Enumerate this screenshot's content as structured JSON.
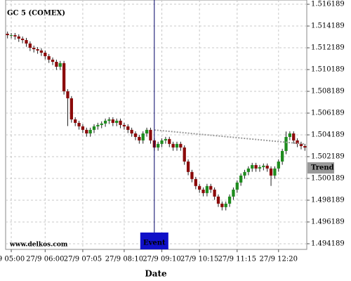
{
  "chart_data": {
    "type": "candlestick",
    "title": "GC 5 (COMEX)",
    "watermark": "www.delkos.com",
    "x_label": "Date",
    "categories": [
      null,
      "9 05:00",
      null,
      null,
      null,
      null,
      null,
      null,
      null,
      null,
      "27/9 06:00",
      null,
      null,
      null,
      null,
      null,
      null,
      null,
      null,
      null,
      "27/9 07:05",
      null,
      null,
      null,
      null,
      null,
      null,
      null,
      null,
      null,
      null,
      "27/9 08:10",
      null,
      null,
      null,
      null,
      null,
      null,
      null,
      null,
      null,
      "27/9 09:10",
      null,
      null,
      null,
      null,
      null,
      null,
      null,
      null,
      null,
      "27/9 10:15",
      null,
      null,
      null,
      null,
      null,
      null,
      null,
      null,
      null,
      "27/9 11:15",
      null,
      null,
      null,
      null,
      null,
      null,
      null,
      null,
      null,
      null,
      "27/9 12:20",
      null,
      null,
      null,
      null,
      null,
      null,
      null
    ],
    "open": [
      1.51348,
      1.51335,
      1.51335,
      1.51323,
      1.51303,
      1.5129,
      1.51258,
      1.51219,
      1.51206,
      1.51194,
      1.51174,
      1.51142,
      1.5111,
      1.5109,
      1.51045,
      1.51078,
      1.50819,
      1.50755,
      1.50561,
      1.50529,
      1.50497,
      1.50465,
      1.50432,
      1.50465,
      1.50497,
      1.5051,
      1.50523,
      1.50549,
      1.50561,
      1.50529,
      1.50549,
      1.5051,
      1.50497,
      1.50465,
      1.50432,
      1.504,
      1.50368,
      1.50432,
      1.50465,
      1.50368,
      1.50303,
      1.50336,
      1.50368,
      1.50381,
      1.50336,
      1.50303,
      1.50336,
      1.50303,
      1.50174,
      1.50078,
      1.50013,
      1.49949,
      1.49916,
      1.49884,
      1.49949,
      1.49916,
      1.49852,
      1.49787,
      1.49755,
      1.49787,
      1.49852,
      1.49916,
      1.49981,
      1.50045,
      1.50078,
      1.5011,
      1.50142,
      1.5011,
      1.50123,
      1.50136,
      1.5011,
      1.50045,
      1.5011,
      1.50174,
      1.50271,
      1.504,
      1.50432,
      1.50368,
      1.50336,
      1.50316
    ],
    "high": [
      1.51368,
      1.51355,
      1.51355,
      1.51343,
      1.51323,
      1.5131,
      1.51278,
      1.51239,
      1.51226,
      1.51214,
      1.51194,
      1.51162,
      1.5113,
      1.5111,
      1.51098,
      1.51098,
      1.50839,
      1.50775,
      1.50581,
      1.50549,
      1.50517,
      1.50485,
      1.50485,
      1.50517,
      1.5053,
      1.50543,
      1.50569,
      1.50581,
      1.50581,
      1.50569,
      1.50569,
      1.5053,
      1.50517,
      1.50485,
      1.50452,
      1.5042,
      1.50452,
      1.50485,
      1.50485,
      1.50388,
      1.50356,
      1.50388,
      1.50401,
      1.50401,
      1.50356,
      1.50356,
      1.50356,
      1.50323,
      1.50194,
      1.50098,
      1.50033,
      1.49969,
      1.49936,
      1.49969,
      1.49969,
      1.49936,
      1.49872,
      1.49807,
      1.49807,
      1.49872,
      1.49936,
      1.50001,
      1.50065,
      1.50098,
      1.5013,
      1.50162,
      1.50162,
      1.50143,
      1.50156,
      1.50156,
      1.5013,
      1.5013,
      1.50194,
      1.50291,
      1.5045,
      1.50452,
      1.50452,
      1.50388,
      1.50356,
      1.50336
    ],
    "low": [
      1.51305,
      1.51305,
      1.51293,
      1.51273,
      1.5126,
      1.51228,
      1.51189,
      1.51176,
      1.51164,
      1.51144,
      1.51112,
      1.5108,
      1.5106,
      1.51015,
      1.51015,
      1.50789,
      1.505,
      1.50531,
      1.50499,
      1.50467,
      1.50435,
      1.50402,
      1.50402,
      1.50435,
      1.50467,
      1.5048,
      1.50493,
      1.50519,
      1.50499,
      1.50499,
      1.5048,
      1.50467,
      1.50435,
      1.50402,
      1.5037,
      1.50338,
      1.50338,
      1.50402,
      1.50338,
      1.50273,
      1.50273,
      1.50306,
      1.50338,
      1.50306,
      1.50273,
      1.50273,
      1.50273,
      1.50144,
      1.50048,
      1.49983,
      1.49919,
      1.49886,
      1.49854,
      1.49854,
      1.49886,
      1.49822,
      1.49757,
      1.49725,
      1.49725,
      1.49757,
      1.49822,
      1.49886,
      1.49951,
      1.50015,
      1.50048,
      1.5008,
      1.5008,
      1.5008,
      1.50093,
      1.5008,
      1.4995,
      1.50015,
      1.5008,
      1.50144,
      1.50241,
      1.5037,
      1.50338,
      1.50306,
      1.50286,
      1.50273
    ],
    "close": [
      1.51335,
      1.51335,
      1.51323,
      1.51303,
      1.5129,
      1.51258,
      1.51219,
      1.51206,
      1.51194,
      1.51174,
      1.51142,
      1.5111,
      1.5109,
      1.51045,
      1.51078,
      1.50819,
      1.50755,
      1.50561,
      1.50529,
      1.50497,
      1.50465,
      1.50432,
      1.50465,
      1.50497,
      1.5051,
      1.50523,
      1.50549,
      1.50561,
      1.50529,
      1.50549,
      1.5051,
      1.50497,
      1.50465,
      1.50432,
      1.504,
      1.50368,
      1.50432,
      1.50465,
      1.50368,
      1.50303,
      1.50336,
      1.50368,
      1.50381,
      1.50336,
      1.50303,
      1.50336,
      1.50303,
      1.50174,
      1.50078,
      1.50013,
      1.49949,
      1.49916,
      1.49884,
      1.49949,
      1.49916,
      1.49852,
      1.49787,
      1.49755,
      1.49787,
      1.49852,
      1.49916,
      1.49981,
      1.50045,
      1.50078,
      1.5011,
      1.50142,
      1.5011,
      1.50123,
      1.50136,
      1.5011,
      1.50045,
      1.5011,
      1.50174,
      1.50271,
      1.504,
      1.50432,
      1.50368,
      1.50336,
      1.50316,
      1.50303
    ],
    "up_color": "#1e8c1e",
    "down_color": "#8b0a0a",
    "ylim": [
      1.49367,
      1.51658
    ],
    "yticks": [
      1.494189,
      1.496189,
      1.498189,
      1.500189,
      1.502189,
      1.504189,
      1.506189,
      1.508189,
      1.510189,
      1.512189,
      1.514189,
      1.516189
    ],
    "grid": true,
    "event": {
      "label": "Event",
      "index": 39,
      "color": "#1010c8"
    },
    "trend": {
      "label": "Trend",
      "start_index": 39,
      "end_index": 79,
      "values": [
        1.50464,
        1.50335
      ],
      "color": "#999999"
    }
  }
}
